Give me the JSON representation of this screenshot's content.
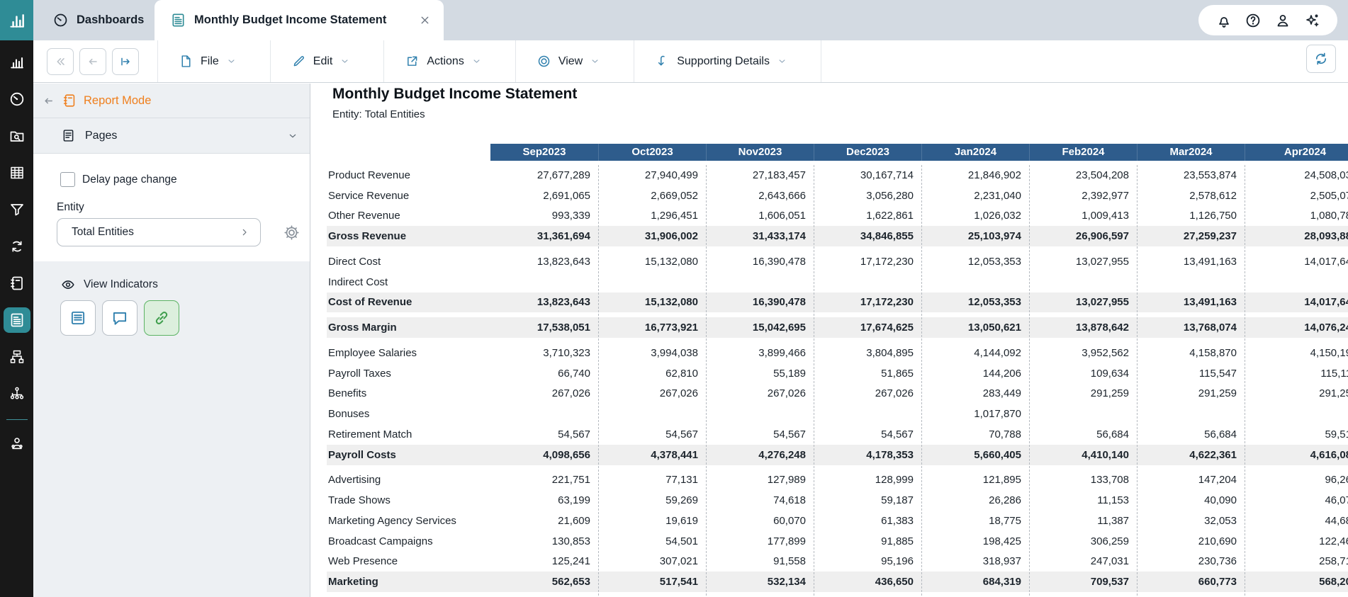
{
  "colors": {
    "teal": "#2f8c96",
    "orange": "#ef7f1d",
    "accent_blue": "#2e7fad",
    "table_header_blue": "#2e5c8c",
    "topbar_bg": "#d3dae2",
    "panel_bg": "#edf0f3",
    "total_row_bg": "#efefef",
    "sidebar_bg": "#181818",
    "active_link_green": "#3f9e4d"
  },
  "topbar": {
    "tabs": [
      {
        "id": "dashboards",
        "icon": "gauge",
        "label": "Dashboards"
      },
      {
        "id": "report",
        "icon": "report-doc",
        "label": "Monthly Budget Income Statement",
        "closable": true
      }
    ],
    "actions": [
      {
        "id": "notifications",
        "icon": "bell"
      },
      {
        "id": "help",
        "icon": "help"
      },
      {
        "id": "account",
        "icon": "person"
      },
      {
        "id": "whats-new",
        "icon": "sparkle"
      }
    ]
  },
  "sidebar": {
    "active": "reports",
    "items": [
      {
        "id": "analytics",
        "icon": "chart-bars"
      },
      {
        "id": "dashboards",
        "icon": "gauge"
      },
      {
        "id": "discovery",
        "icon": "folder-search"
      },
      {
        "id": "sheets",
        "icon": "sheet"
      },
      {
        "id": "filters",
        "icon": "funnel"
      },
      {
        "id": "integration",
        "icon": "sync"
      },
      {
        "id": "notebook",
        "icon": "notebook"
      },
      {
        "id": "reports",
        "icon": "report-doc"
      },
      {
        "id": "processes",
        "icon": "flow"
      },
      {
        "id": "org-chart",
        "icon": "org"
      },
      {
        "id": "divider"
      },
      {
        "id": "administration",
        "icon": "admin"
      }
    ]
  },
  "toolbar": {
    "nav": [
      {
        "id": "first-page",
        "icon": "chev-double-left",
        "state": "disabled"
      },
      {
        "id": "prev-page",
        "icon": "arrow-left",
        "state": "disabled"
      },
      {
        "id": "next-page",
        "icon": "arrow-bar-right",
        "state": "primary"
      }
    ],
    "menus": [
      {
        "id": "file",
        "icon": "file",
        "label": "File"
      },
      {
        "id": "edit",
        "icon": "pencil",
        "label": "Edit"
      },
      {
        "id": "actions",
        "icon": "actions",
        "label": "Actions"
      },
      {
        "id": "view",
        "icon": "view",
        "label": "View"
      },
      {
        "id": "supporting-details",
        "icon": "supp",
        "label": "Supporting Details"
      }
    ]
  },
  "panel": {
    "mode_label": "Report Mode",
    "pages_label": "Pages",
    "delay_label": "Delay page change",
    "delay_checked": false,
    "entity_label": "Entity",
    "entity_value": "Total Entities",
    "view_indicators_label": "View Indicators",
    "indicator_buttons": [
      {
        "id": "notes",
        "icon": "notes",
        "active": false
      },
      {
        "id": "comments",
        "icon": "comment",
        "active": false
      },
      {
        "id": "links",
        "icon": "link",
        "active": true
      }
    ]
  },
  "report": {
    "title": "Monthly Budget Income Statement",
    "subtitle": "Entity: Total Entities",
    "months": [
      "Sep2023",
      "Oct2023",
      "Nov2023",
      "Dec2023",
      "Jan2024",
      "Feb2024",
      "Mar2024",
      "Apr2024"
    ],
    "rows": [
      {
        "label": "Product Revenue",
        "type": "item",
        "gap": false,
        "values": [
          "27,677,289",
          "27,940,499",
          "27,183,457",
          "30,167,714",
          "21,846,902",
          "23,504,208",
          "23,553,874",
          "24,508,03"
        ]
      },
      {
        "label": "Service Revenue",
        "type": "item",
        "gap": false,
        "values": [
          "2,691,065",
          "2,669,052",
          "2,643,666",
          "3,056,280",
          "2,231,040",
          "2,392,977",
          "2,578,612",
          "2,505,07"
        ]
      },
      {
        "label": "Other Revenue",
        "type": "item",
        "gap": false,
        "values": [
          "993,339",
          "1,296,451",
          "1,606,051",
          "1,622,861",
          "1,026,032",
          "1,009,413",
          "1,126,750",
          "1,080,78"
        ]
      },
      {
        "label": "Gross Revenue",
        "type": "total",
        "gap": false,
        "values": [
          "31,361,694",
          "31,906,002",
          "31,433,174",
          "34,846,855",
          "25,103,974",
          "26,906,597",
          "27,259,237",
          "28,093,88"
        ]
      },
      {
        "label": "Direct Cost",
        "type": "item",
        "gap": true,
        "values": [
          "13,823,643",
          "15,132,080",
          "16,390,478",
          "17,172,230",
          "12,053,353",
          "13,027,955",
          "13,491,163",
          "14,017,64"
        ]
      },
      {
        "label": "Indirect Cost",
        "type": "item",
        "gap": false,
        "values": [
          "",
          "",
          "",
          "",
          "",
          "",
          "",
          ""
        ]
      },
      {
        "label": "Cost of Revenue",
        "type": "total",
        "gap": false,
        "values": [
          "13,823,643",
          "15,132,080",
          "16,390,478",
          "17,172,230",
          "12,053,353",
          "13,027,955",
          "13,491,163",
          "14,017,64"
        ]
      },
      {
        "label": "Gross Margin",
        "type": "total",
        "gap": true,
        "values": [
          "17,538,051",
          "16,773,921",
          "15,042,695",
          "17,674,625",
          "13,050,621",
          "13,878,642",
          "13,768,074",
          "14,076,24"
        ]
      },
      {
        "label": "Employee Salaries",
        "type": "item",
        "gap": true,
        "values": [
          "3,710,323",
          "3,994,038",
          "3,899,466",
          "3,804,895",
          "4,144,092",
          "3,952,562",
          "4,158,870",
          "4,150,19"
        ]
      },
      {
        "label": "Payroll Taxes",
        "type": "item",
        "gap": false,
        "values": [
          "66,740",
          "62,810",
          "55,189",
          "51,865",
          "144,206",
          "109,634",
          "115,547",
          "115,11"
        ]
      },
      {
        "label": "Benefits",
        "type": "item",
        "gap": false,
        "values": [
          "267,026",
          "267,026",
          "267,026",
          "267,026",
          "283,449",
          "291,259",
          "291,259",
          "291,25"
        ]
      },
      {
        "label": "Bonuses",
        "type": "item",
        "gap": false,
        "values": [
          "",
          "",
          "",
          "",
          "1,017,870",
          "",
          "",
          ""
        ]
      },
      {
        "label": "Retirement Match",
        "type": "item",
        "gap": false,
        "values": [
          "54,567",
          "54,567",
          "54,567",
          "54,567",
          "70,788",
          "56,684",
          "56,684",
          "59,51"
        ]
      },
      {
        "label": "Payroll Costs",
        "type": "total",
        "gap": false,
        "values": [
          "4,098,656",
          "4,378,441",
          "4,276,248",
          "4,178,353",
          "5,660,405",
          "4,410,140",
          "4,622,361",
          "4,616,08"
        ]
      },
      {
        "label": "Advertising",
        "type": "item",
        "gap": true,
        "values": [
          "221,751",
          "77,131",
          "127,989",
          "128,999",
          "121,895",
          "133,708",
          "147,204",
          "96,26"
        ]
      },
      {
        "label": "Trade Shows",
        "type": "item",
        "gap": false,
        "values": [
          "63,199",
          "59,269",
          "74,618",
          "59,187",
          "26,286",
          "11,153",
          "40,090",
          "46,07"
        ]
      },
      {
        "label": "Marketing Agency Services",
        "type": "item",
        "gap": false,
        "values": [
          "21,609",
          "19,619",
          "60,070",
          "61,383",
          "18,775",
          "11,387",
          "32,053",
          "44,68"
        ]
      },
      {
        "label": "Broadcast Campaigns",
        "type": "item",
        "gap": false,
        "values": [
          "130,853",
          "54,501",
          "177,899",
          "91,885",
          "198,425",
          "306,259",
          "210,690",
          "122,46"
        ]
      },
      {
        "label": "Web Presence",
        "type": "item",
        "gap": false,
        "values": [
          "125,241",
          "307,021",
          "91,558",
          "95,196",
          "318,937",
          "247,031",
          "230,736",
          "258,71"
        ]
      },
      {
        "label": "Marketing",
        "type": "total",
        "gap": false,
        "values": [
          "562,653",
          "517,541",
          "532,134",
          "436,650",
          "684,319",
          "709,537",
          "660,773",
          "568,20"
        ]
      }
    ]
  }
}
